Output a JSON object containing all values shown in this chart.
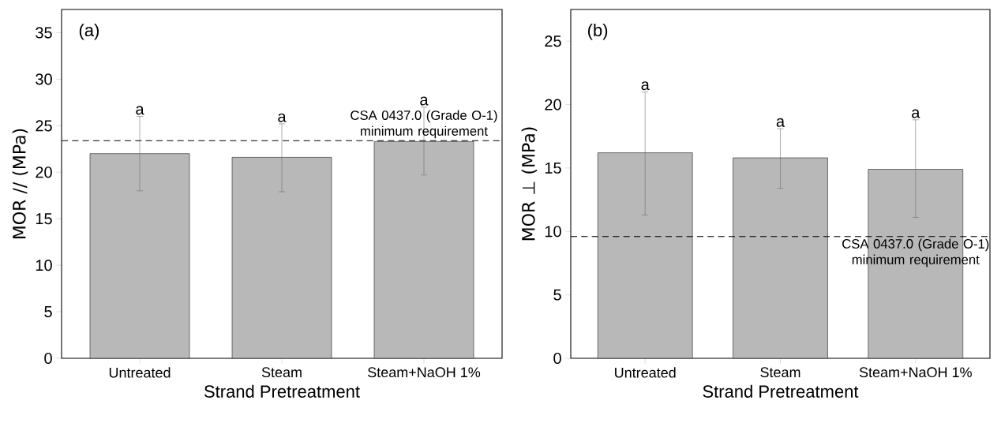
{
  "chart_data": [
    {
      "type": "bar",
      "categories": [
        "Untreated",
        "Steam",
        "Steam+NaOH 1%"
      ],
      "values": [
        22.0,
        21.6,
        23.3
      ],
      "errors": [
        [
          18.0,
          26.0
        ],
        [
          17.9,
          25.2
        ],
        [
          19.7,
          27.0
        ]
      ],
      "color": "#b8b8b8",
      "ylim": [
        0,
        37.5
      ],
      "yticks": [
        0,
        5,
        10,
        15,
        20,
        25,
        30,
        35
      ],
      "xlabel": "Strand Pretreatment",
      "ylabel": "MOR  // (MPa)",
      "ref_lines": [
        {
          "axis": "y",
          "value": 23.4,
          "label": "CSA 0437.0 (Grade O-1) minimum requirement",
          "line_style": "dashed"
        }
      ],
      "annotations": [
        "(a)",
        {
          "text": "a",
          "x": "Untreated",
          "y": 26.0
        },
        {
          "text": "a",
          "x": "Steam",
          "y": 25.2
        },
        {
          "text": "a",
          "x": "Steam+NaOH 1%",
          "y": 27.0
        }
      ]
    },
    {
      "type": "bar",
      "categories": [
        "Untreated",
        "Steam",
        "Steam+NaOH 1%"
      ],
      "values": [
        16.2,
        15.8,
        14.9
      ],
      "errors": [
        [
          11.3,
          21.0
        ],
        [
          13.4,
          18.1
        ],
        [
          11.1,
          18.8
        ]
      ],
      "color": "#b8b8b8",
      "ylim": [
        0,
        27.5
      ],
      "yticks": [
        0,
        5,
        10,
        15,
        20,
        25
      ],
      "xlabel": "Strand Pretreatment",
      "ylabel": "MOR  ⊥ (MPa)",
      "ref_lines": [
        {
          "axis": "y",
          "value": 9.6,
          "label": "CSA 0437.0 (Grade O-1) minimum requirement",
          "line_style": "dashed"
        }
      ],
      "annotations": [
        "(b)",
        {
          "text": "a",
          "x": "Untreated",
          "y": 21.0
        },
        {
          "text": "a",
          "x": "Steam",
          "y": 18.1
        },
        {
          "text": "a",
          "x": "Steam+NaOH 1%",
          "y": 18.8
        }
      ]
    }
  ]
}
